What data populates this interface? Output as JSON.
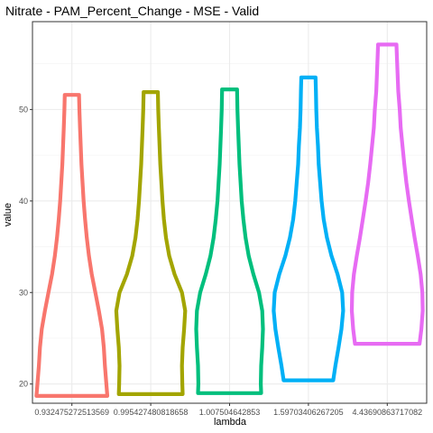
{
  "chart_data": {
    "type": "violin",
    "title": "Nitrate - PAM_Percent_Change - MSE - Valid",
    "xlabel": "lambda",
    "ylabel": "value",
    "ylim": [
      17.9,
      59.6
    ],
    "yticks": [
      20,
      30,
      40,
      50
    ],
    "grid": true,
    "legend": "none",
    "categories": [
      "0.932475272513569",
      "0.995427480818658",
      "1.007504642853",
      "1.59703406267205",
      "4.43690863717082"
    ],
    "series": [
      {
        "category": "0.932475272513569",
        "color": "#F8766D",
        "min": 18.7,
        "max": 51.6,
        "width_profile": [
          [
            18.7,
            1.0
          ],
          [
            20,
            0.97
          ],
          [
            22,
            0.93
          ],
          [
            24,
            0.9
          ],
          [
            26,
            0.85
          ],
          [
            28,
            0.76
          ],
          [
            30,
            0.66
          ],
          [
            32,
            0.56
          ],
          [
            34,
            0.48
          ],
          [
            36,
            0.42
          ],
          [
            38,
            0.37
          ],
          [
            40,
            0.33
          ],
          [
            42,
            0.3
          ],
          [
            44,
            0.27
          ],
          [
            46,
            0.25
          ],
          [
            48,
            0.23
          ],
          [
            50,
            0.21
          ],
          [
            51.6,
            0.2
          ]
        ]
      },
      {
        "category": "0.995427480818658",
        "color": "#A3A500",
        "min": 18.9,
        "max": 51.9,
        "width_profile": [
          [
            18.9,
            0.9
          ],
          [
            20,
            0.89
          ],
          [
            22,
            0.88
          ],
          [
            24,
            0.9
          ],
          [
            26,
            0.94
          ],
          [
            28,
            0.97
          ],
          [
            30,
            0.88
          ],
          [
            32,
            0.67
          ],
          [
            34,
            0.52
          ],
          [
            36,
            0.43
          ],
          [
            38,
            0.37
          ],
          [
            40,
            0.33
          ],
          [
            42,
            0.3
          ],
          [
            44,
            0.27
          ],
          [
            46,
            0.25
          ],
          [
            48,
            0.23
          ],
          [
            50,
            0.21
          ],
          [
            51.9,
            0.2
          ]
        ]
      },
      {
        "category": "1.007504642853",
        "color": "#00BF7D",
        "min": 19.0,
        "max": 52.2,
        "width_profile": [
          [
            19,
            0.89
          ],
          [
            20,
            0.88
          ],
          [
            22,
            0.89
          ],
          [
            24,
            0.92
          ],
          [
            26,
            0.94
          ],
          [
            28,
            0.92
          ],
          [
            30,
            0.83
          ],
          [
            32,
            0.67
          ],
          [
            34,
            0.54
          ],
          [
            36,
            0.45
          ],
          [
            38,
            0.39
          ],
          [
            40,
            0.34
          ],
          [
            42,
            0.31
          ],
          [
            44,
            0.28
          ],
          [
            46,
            0.26
          ],
          [
            48,
            0.24
          ],
          [
            50,
            0.22
          ],
          [
            52.2,
            0.21
          ]
        ]
      },
      {
        "category": "1.59703406267205",
        "color": "#00B0F6",
        "min": 20.4,
        "max": 53.5,
        "width_profile": [
          [
            20.4,
            0.7
          ],
          [
            22,
            0.76
          ],
          [
            24,
            0.85
          ],
          [
            26,
            0.93
          ],
          [
            28,
            0.98
          ],
          [
            30,
            0.95
          ],
          [
            32,
            0.82
          ],
          [
            34,
            0.65
          ],
          [
            36,
            0.52
          ],
          [
            38,
            0.43
          ],
          [
            40,
            0.37
          ],
          [
            42,
            0.33
          ],
          [
            44,
            0.29
          ],
          [
            46,
            0.27
          ],
          [
            48,
            0.24
          ],
          [
            50,
            0.22
          ],
          [
            52,
            0.21
          ],
          [
            53.5,
            0.2
          ]
        ]
      },
      {
        "category": "4.43690863717082",
        "color": "#E76BF3",
        "min": 24.4,
        "max": 57.1,
        "width_profile": [
          [
            24.4,
            0.91
          ],
          [
            26,
            0.96
          ],
          [
            28,
            1.0
          ],
          [
            30,
            0.99
          ],
          [
            32,
            0.94
          ],
          [
            34,
            0.86
          ],
          [
            36,
            0.77
          ],
          [
            38,
            0.69
          ],
          [
            40,
            0.61
          ],
          [
            42,
            0.54
          ],
          [
            44,
            0.48
          ],
          [
            46,
            0.43
          ],
          [
            48,
            0.38
          ],
          [
            50,
            0.35
          ],
          [
            52,
            0.31
          ],
          [
            54,
            0.29
          ],
          [
            56,
            0.27
          ],
          [
            57.1,
            0.26
          ]
        ]
      }
    ]
  }
}
